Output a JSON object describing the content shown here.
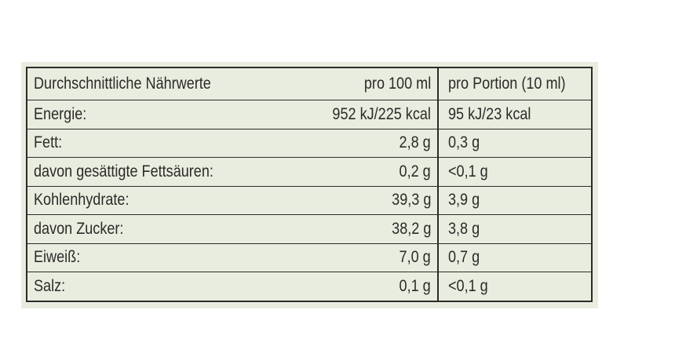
{
  "table": {
    "header": [
      "Durchschnittliche Nährwerte",
      "pro 100 ml",
      "pro Portion (10 ml)"
    ],
    "rows": [
      [
        "Energie:",
        "952 kJ/225 kcal",
        "95 kJ/23 kcal"
      ],
      [
        "Fett:",
        "2,8 g",
        "0,3 g"
      ],
      [
        "davon gesättigte Fettsäuren:",
        "0,2 g",
        "<0,1 g"
      ],
      [
        "Kohlenhydrate:",
        "39,3 g",
        "3,9 g"
      ],
      [
        "davon Zucker:",
        "38,2 g",
        "3,8 g"
      ],
      [
        "Eiweiß:",
        "7,0 g",
        "0,7 g"
      ],
      [
        "Salz:",
        "0,1 g",
        "<0,1 g"
      ]
    ]
  }
}
